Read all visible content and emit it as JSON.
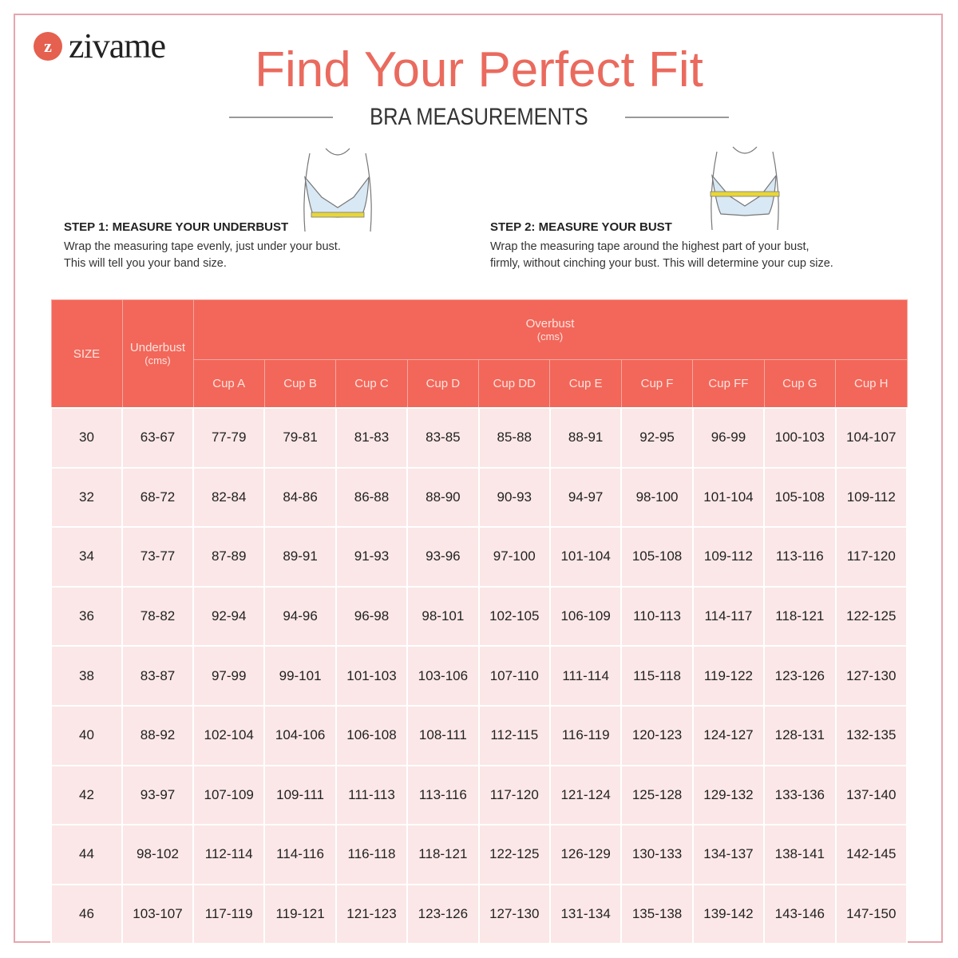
{
  "brand": {
    "logo_text": "zivame",
    "logo_mark": "z",
    "accent": "#ea6a5e"
  },
  "title": "Find Your Perfect Fit",
  "subtitle": "BRA MEASUREMENTS",
  "steps": [
    {
      "heading": "STEP 1: MEASURE YOUR UNDERBUST",
      "line1": "Wrap the measuring tape evenly, just under your bust.",
      "line2": "This will tell you your band size."
    },
    {
      "heading": "STEP 2: MEASURE YOUR BUST",
      "line1": "Wrap the measuring tape around the highest part of your bust,",
      "line2": "firmly, without cinching your bust. This will determine your cup size."
    }
  ],
  "table": {
    "size_header": "SIZE",
    "underbust_header": "Underbust",
    "underbust_unit": "(cms)",
    "overbust_header": "Overbust",
    "overbust_unit": "(cms)",
    "cups": [
      "Cup A",
      "Cup B",
      "Cup C",
      "Cup D",
      "Cup DD",
      "Cup E",
      "Cup F",
      "Cup FF",
      "Cup G",
      "Cup H"
    ],
    "rows": [
      [
        "30",
        "63-67",
        "77-79",
        "79-81",
        "81-83",
        "83-85",
        "85-88",
        "88-91",
        "92-95",
        "96-99",
        "100-103",
        "104-107"
      ],
      [
        "32",
        "68-72",
        "82-84",
        "84-86",
        "86-88",
        "88-90",
        "90-93",
        "94-97",
        "98-100",
        "101-104",
        "105-108",
        "109-112"
      ],
      [
        "34",
        "73-77",
        "87-89",
        "89-91",
        "91-93",
        "93-96",
        "97-100",
        "101-104",
        "105-108",
        "109-112",
        "113-116",
        "117-120"
      ],
      [
        "36",
        "78-82",
        "92-94",
        "94-96",
        "96-98",
        "98-101",
        "102-105",
        "106-109",
        "110-113",
        "114-117",
        "118-121",
        "122-125"
      ],
      [
        "38",
        "83-87",
        "97-99",
        "99-101",
        "101-103",
        "103-106",
        "107-110",
        "111-114",
        "115-118",
        "119-122",
        "123-126",
        "127-130"
      ],
      [
        "40",
        "88-92",
        "102-104",
        "104-106",
        "106-108",
        "108-111",
        "112-115",
        "116-119",
        "120-123",
        "124-127",
        "128-131",
        "132-135"
      ],
      [
        "42",
        "93-97",
        "107-109",
        "109-111",
        "111-113",
        "113-116",
        "117-120",
        "121-124",
        "125-128",
        "129-132",
        "133-136",
        "137-140"
      ],
      [
        "44",
        "98-102",
        "112-114",
        "114-116",
        "116-118",
        "118-121",
        "122-125",
        "126-129",
        "130-133",
        "134-137",
        "138-141",
        "142-145"
      ],
      [
        "46",
        "103-107",
        "117-119",
        "119-121",
        "121-123",
        "123-126",
        "127-130",
        "131-134",
        "135-138",
        "139-142",
        "143-146",
        "147-150"
      ]
    ]
  }
}
